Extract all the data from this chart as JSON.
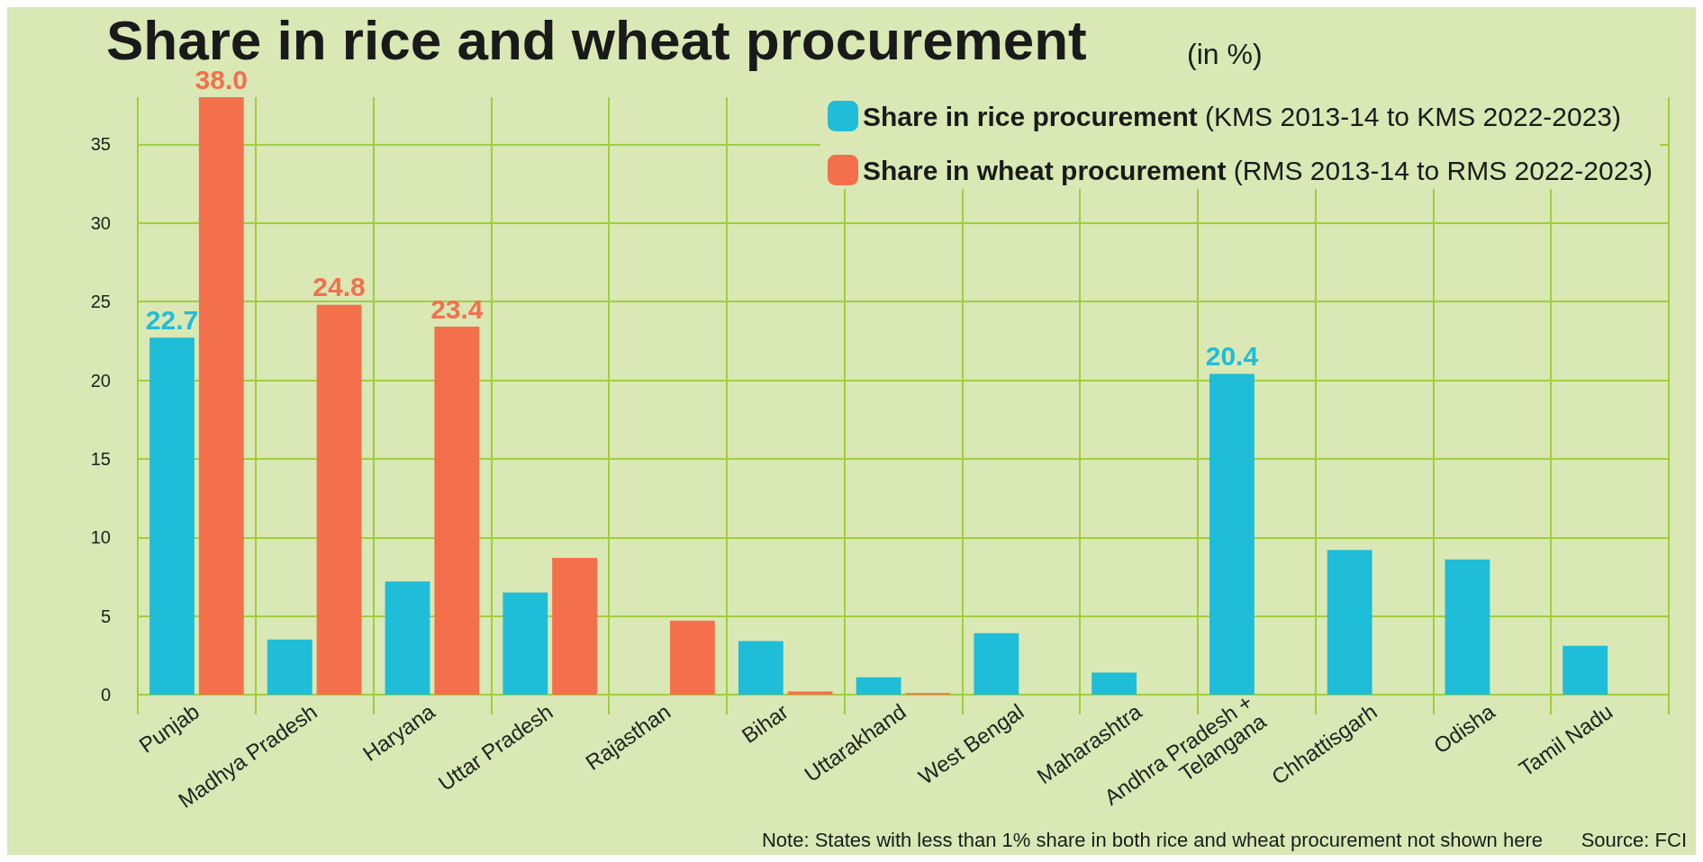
{
  "chart_data": {
    "type": "bar",
    "title": "Share in rice and wheat procurement",
    "subtitle": "(in %)",
    "categories": [
      "Punjab",
      "Madhya Pradesh",
      "Haryana",
      "Uttar Pradesh",
      "Rajasthan",
      "Bihar",
      "Uttarakhand",
      "West Bengal",
      "Maharashtra",
      "Andhra Pradesh +\nTelangana",
      "Chhattisgarh",
      "Odisha",
      "Tamil Nadu"
    ],
    "series": [
      {
        "name": "Share in rice procurement (KMS 2013-14 to KMS 2022-2023)",
        "color": "#1fbdd8",
        "values": [
          22.7,
          3.5,
          7.2,
          6.5,
          null,
          3.4,
          1.1,
          3.9,
          1.4,
          20.4,
          9.2,
          8.6,
          3.1
        ],
        "value_labels": [
          "22.7",
          null,
          null,
          null,
          null,
          null,
          null,
          null,
          null,
          "20.4",
          null,
          null,
          null
        ]
      },
      {
        "name": "Share in wheat procurement (RMS 2013-14 to RMS 2022-2023)",
        "color": "#f4704c",
        "values": [
          38.0,
          24.8,
          23.4,
          8.7,
          4.7,
          0.2,
          0.1,
          null,
          null,
          null,
          null,
          null,
          null
        ],
        "value_labels": [
          "38.0",
          "24.8",
          "23.4",
          null,
          null,
          null,
          null,
          null,
          null,
          null,
          null,
          null,
          null
        ]
      }
    ],
    "ylim": [
      0,
      38
    ],
    "yticks": [
      0,
      5,
      10,
      15,
      20,
      25,
      30,
      35
    ],
    "grid": true,
    "legend": "top right",
    "annotations": [
      "Note: States with less than 1% share in both rice and wheat procurement not shown here",
      "Source: FCI"
    ]
  }
}
